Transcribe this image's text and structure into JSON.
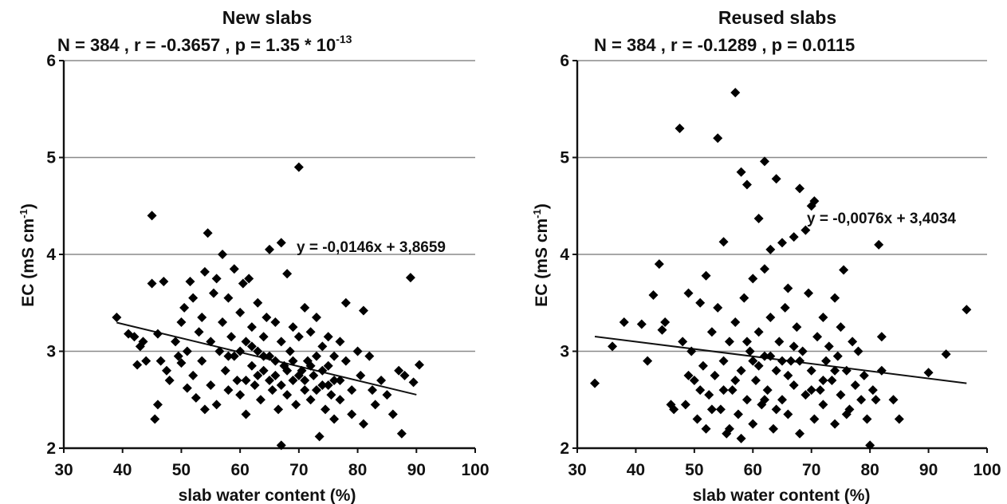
{
  "chart_data": [
    {
      "type": "scatter",
      "title": "New slabs",
      "stats": {
        "prefix": "N = 384 , r = -0.3657 , p = 1.35 * 10",
        "superscript": "-13"
      },
      "xlabel": "slab water content (%)",
      "ylabel": {
        "text": "EC (mS cm",
        "superscript": "-1",
        "suffix": ")"
      },
      "xlim": [
        30,
        100
      ],
      "ylim": [
        2,
        6
      ],
      "xticks": [
        "30",
        "40",
        "50",
        "60",
        "70",
        "80",
        "90",
        "100"
      ],
      "yticks": [
        "2",
        "3",
        "4",
        "5",
        "6"
      ],
      "grid": "horizontal",
      "marker": "diamond",
      "trendline": {
        "equation": "y = -0,0146x + 3,8659",
        "slope": -0.0146,
        "intercept": 3.8659,
        "x_range": [
          39,
          90
        ]
      },
      "points": [
        [
          39,
          3.35
        ],
        [
          41,
          3.18
        ],
        [
          42,
          3.15
        ],
        [
          42.5,
          2.86
        ],
        [
          43,
          3.05
        ],
        [
          43.5,
          3.1
        ],
        [
          44,
          2.9
        ],
        [
          45,
          3.7
        ],
        [
          45,
          4.4
        ],
        [
          45.5,
          2.3
        ],
        [
          46,
          3.18
        ],
        [
          46,
          2.45
        ],
        [
          46.5,
          2.9
        ],
        [
          47,
          3.72
        ],
        [
          47.5,
          2.8
        ],
        [
          48,
          2.7
        ],
        [
          49,
          3.1
        ],
        [
          49.5,
          2.95
        ],
        [
          50,
          3.3
        ],
        [
          50,
          2.88
        ],
        [
          50.5,
          3.45
        ],
        [
          51,
          3.0
        ],
        [
          51,
          2.62
        ],
        [
          51.5,
          3.72
        ],
        [
          52,
          3.55
        ],
        [
          52,
          2.75
        ],
        [
          52.5,
          2.52
        ],
        [
          53,
          3.2
        ],
        [
          53.5,
          3.35
        ],
        [
          53.5,
          2.9
        ],
        [
          54,
          3.82
        ],
        [
          54,
          2.4
        ],
        [
          54.5,
          4.22
        ],
        [
          55,
          3.1
        ],
        [
          55,
          2.65
        ],
        [
          55.5,
          3.6
        ],
        [
          56,
          3.75
        ],
        [
          56,
          2.45
        ],
        [
          56.5,
          3.0
        ],
        [
          57,
          4.0
        ],
        [
          57,
          3.3
        ],
        [
          57.5,
          2.8
        ],
        [
          58,
          3.55
        ],
        [
          58,
          2.6
        ],
        [
          58.5,
          3.15
        ],
        [
          59,
          3.85
        ],
        [
          59,
          2.95
        ],
        [
          59.5,
          2.7
        ],
        [
          60,
          3.4
        ],
        [
          60,
          2.55
        ],
        [
          60.5,
          3.7
        ],
        [
          61,
          3.1
        ],
        [
          61,
          2.35
        ],
        [
          61.5,
          3.75
        ],
        [
          62,
          3.25
        ],
        [
          62,
          2.85
        ],
        [
          62.5,
          2.65
        ],
        [
          63,
          3.5
        ],
        [
          63,
          3.0
        ],
        [
          63.5,
          2.5
        ],
        [
          64,
          3.15
        ],
        [
          64,
          2.8
        ],
        [
          64.5,
          3.35
        ],
        [
          65,
          4.05
        ],
        [
          65,
          2.95
        ],
        [
          65.5,
          2.6
        ],
        [
          66,
          3.3
        ],
        [
          66,
          2.75
        ],
        [
          66.5,
          2.4
        ],
        [
          67,
          4.12
        ],
        [
          67,
          3.1
        ],
        [
          67.5,
          2.85
        ],
        [
          68,
          3.8
        ],
        [
          68,
          2.55
        ],
        [
          68.5,
          3.0
        ],
        [
          69,
          3.25
        ],
        [
          69,
          2.7
        ],
        [
          69.5,
          2.45
        ],
        [
          70,
          4.9
        ],
        [
          70,
          3.15
        ],
        [
          70.5,
          2.8
        ],
        [
          71,
          3.45
        ],
        [
          71,
          2.6
        ],
        [
          71.5,
          2.9
        ],
        [
          72,
          3.2
        ],
        [
          72,
          2.5
        ],
        [
          72.5,
          2.75
        ],
        [
          73,
          3.35
        ],
        [
          73,
          2.95
        ],
        [
          73.5,
          2.12
        ],
        [
          74,
          3.05
        ],
        [
          74,
          2.65
        ],
        [
          74.5,
          2.4
        ],
        [
          75,
          3.15
        ],
        [
          75,
          2.85
        ],
        [
          75.5,
          2.55
        ],
        [
          76,
          2.95
        ],
        [
          76,
          2.3
        ],
        [
          77,
          3.1
        ],
        [
          77,
          2.7
        ],
        [
          78,
          2.9
        ],
        [
          78,
          3.5
        ],
        [
          79,
          2.6
        ],
        [
          79,
          2.35
        ],
        [
          80,
          3.0
        ],
        [
          80.5,
          2.75
        ],
        [
          81,
          3.42
        ],
        [
          81,
          2.25
        ],
        [
          82,
          2.95
        ],
        [
          82.5,
          2.6
        ],
        [
          83,
          2.45
        ],
        [
          84,
          2.7
        ],
        [
          85,
          2.55
        ],
        [
          86,
          2.35
        ],
        [
          87,
          2.8
        ],
        [
          87.5,
          2.15
        ],
        [
          88,
          2.75
        ],
        [
          89,
          3.76
        ],
        [
          89.5,
          2.68
        ],
        [
          90.5,
          2.86
        ],
        [
          67,
          2.03
        ],
        [
          60,
          3.0
        ],
        [
          62,
          3.05
        ],
        [
          64,
          2.95
        ],
        [
          66,
          2.9
        ],
        [
          68,
          2.8
        ],
        [
          70,
          2.75
        ],
        [
          72,
          2.85
        ],
        [
          74,
          2.8
        ],
        [
          76,
          2.7
        ],
        [
          58,
          2.95
        ],
        [
          61,
          2.7
        ],
        [
          63,
          2.75
        ],
        [
          65,
          2.7
        ],
        [
          67,
          2.65
        ],
        [
          69,
          2.9
        ],
        [
          71,
          2.7
        ],
        [
          73,
          2.6
        ],
        [
          75,
          2.65
        ],
        [
          77,
          2.5
        ]
      ]
    },
    {
      "type": "scatter",
      "title": "Reused slabs",
      "stats": {
        "prefix": "N = 384 , r = -0.1289 , p = 0.0115",
        "superscript": ""
      },
      "xlabel": "slab water content (%)",
      "ylabel": {
        "text": "EC (mS cm",
        "superscript": "-1",
        "suffix": ")"
      },
      "xlim": [
        30,
        100
      ],
      "ylim": [
        2,
        6
      ],
      "xticks": [
        "30",
        "40",
        "50",
        "60",
        "70",
        "80",
        "90",
        "100"
      ],
      "yticks": [
        "2",
        "3",
        "4",
        "5",
        "6"
      ],
      "grid": "horizontal",
      "marker": "diamond",
      "trendline": {
        "equation": "y = -0,0076x + 3,4034",
        "slope": -0.0076,
        "intercept": 3.4034,
        "x_range": [
          33,
          96.5
        ]
      },
      "points": [
        [
          33,
          2.67
        ],
        [
          36,
          3.05
        ],
        [
          38,
          3.3
        ],
        [
          41,
          3.28
        ],
        [
          42,
          2.9
        ],
        [
          43,
          3.58
        ],
        [
          44,
          3.9
        ],
        [
          44.5,
          3.22
        ],
        [
          45,
          3.3
        ],
        [
          46.5,
          2.4
        ],
        [
          47.5,
          5.3
        ],
        [
          48,
          3.1
        ],
        [
          48.5,
          2.45
        ],
        [
          49,
          3.6
        ],
        [
          49.5,
          3.0
        ],
        [
          50,
          2.7
        ],
        [
          50.5,
          2.3
        ],
        [
          51,
          3.5
        ],
        [
          51.5,
          2.85
        ],
        [
          52,
          3.78
        ],
        [
          52.5,
          2.55
        ],
        [
          53,
          3.2
        ],
        [
          53.5,
          2.75
        ],
        [
          54,
          5.2
        ],
        [
          54,
          3.45
        ],
        [
          54.5,
          2.4
        ],
        [
          55,
          4.13
        ],
        [
          55,
          2.9
        ],
        [
          55.5,
          2.15
        ],
        [
          56,
          3.1
        ],
        [
          56.5,
          2.6
        ],
        [
          57,
          5.67
        ],
        [
          57,
          3.3
        ],
        [
          57.5,
          2.35
        ],
        [
          58,
          4.85
        ],
        [
          58,
          2.8
        ],
        [
          58.5,
          3.55
        ],
        [
          59,
          4.72
        ],
        [
          59,
          2.5
        ],
        [
          59.5,
          3.0
        ],
        [
          60,
          3.75
        ],
        [
          60,
          2.25
        ],
        [
          60.5,
          2.7
        ],
        [
          61,
          4.37
        ],
        [
          61,
          3.2
        ],
        [
          61.5,
          2.45
        ],
        [
          62,
          4.96
        ],
        [
          62,
          3.85
        ],
        [
          62,
          2.95
        ],
        [
          62.5,
          2.6
        ],
        [
          63,
          4.05
        ],
        [
          63,
          3.35
        ],
        [
          63.5,
          2.2
        ],
        [
          64,
          4.78
        ],
        [
          64,
          2.8
        ],
        [
          64.5,
          3.1
        ],
        [
          65,
          4.12
        ],
        [
          65,
          2.5
        ],
        [
          65.5,
          3.45
        ],
        [
          66,
          3.65
        ],
        [
          66,
          2.35
        ],
        [
          66.5,
          2.9
        ],
        [
          67,
          4.18
        ],
        [
          67,
          2.65
        ],
        [
          67.5,
          3.25
        ],
        [
          68,
          4.68
        ],
        [
          68,
          2.15
        ],
        [
          68.5,
          3.0
        ],
        [
          69,
          4.25
        ],
        [
          69,
          2.55
        ],
        [
          69.5,
          3.6
        ],
        [
          70,
          4.5
        ],
        [
          70,
          2.8
        ],
        [
          70.5,
          4.55
        ],
        [
          70.5,
          2.3
        ],
        [
          71,
          3.15
        ],
        [
          71.5,
          2.6
        ],
        [
          72,
          3.35
        ],
        [
          72,
          2.45
        ],
        [
          72.5,
          2.9
        ],
        [
          73,
          3.05
        ],
        [
          73.5,
          2.7
        ],
        [
          74,
          3.55
        ],
        [
          74,
          2.25
        ],
        [
          74.5,
          2.95
        ],
        [
          75,
          3.25
        ],
        [
          75,
          2.55
        ],
        [
          75.5,
          3.84
        ],
        [
          76,
          2.8
        ],
        [
          76.5,
          2.4
        ],
        [
          77,
          3.1
        ],
        [
          77.5,
          2.65
        ],
        [
          78,
          3.0
        ],
        [
          78.5,
          2.5
        ],
        [
          79,
          2.75
        ],
        [
          79.5,
          2.3
        ],
        [
          80,
          2.03
        ],
        [
          80.5,
          2.6
        ],
        [
          81,
          2.5
        ],
        [
          81.5,
          4.1
        ],
        [
          82,
          3.15
        ],
        [
          82,
          2.8
        ],
        [
          84,
          2.5
        ],
        [
          85,
          2.3
        ],
        [
          90,
          2.78
        ],
        [
          93,
          2.97
        ],
        [
          96.5,
          3.43
        ],
        [
          46,
          2.45
        ],
        [
          52,
          2.2
        ],
        [
          56,
          2.2
        ],
        [
          58,
          2.1
        ],
        [
          60,
          2.9
        ],
        [
          62,
          2.5
        ],
        [
          64,
          2.4
        ],
        [
          66,
          2.75
        ],
        [
          68,
          2.9
        ],
        [
          70,
          2.6
        ],
        [
          72,
          2.7
        ],
        [
          74,
          2.8
        ],
        [
          76,
          2.35
        ],
        [
          63,
          2.95
        ],
        [
          65,
          2.9
        ],
        [
          67,
          3.05
        ],
        [
          61,
          2.85
        ],
        [
          59,
          3.1
        ],
        [
          57,
          2.7
        ],
        [
          55,
          2.6
        ],
        [
          53,
          2.4
        ],
        [
          51,
          2.6
        ],
        [
          49,
          2.75
        ]
      ]
    }
  ]
}
